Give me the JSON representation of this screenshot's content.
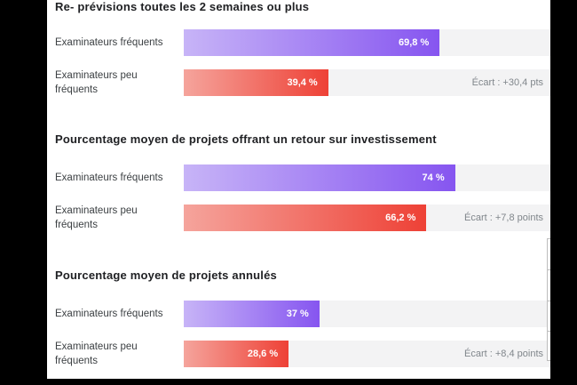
{
  "chart_data": {
    "type": "bar",
    "orientation": "horizontal",
    "unit": "%",
    "axis_max": 100,
    "grid": false,
    "legend": false,
    "categories": [
      "Examinateurs fréquents",
      "Examinateurs peu fréquents"
    ],
    "series_colors": {
      "frequent": {
        "from": "#c7b4f7",
        "to": "#8655f0"
      },
      "infrequent": {
        "from": "#f5a49c",
        "to": "#ee4136"
      }
    },
    "track_color": "#f3f3f4",
    "sections": [
      {
        "title": "Re- prévisions toutes les 2 semaines ou plus",
        "rows": [
          {
            "label": "Examinateurs fréquents",
            "value": 69.8,
            "value_label": "69,8 %",
            "series": "frequent"
          },
          {
            "label": "Examinateurs peu fréquents",
            "value": 39.4,
            "value_label": "39,4 %",
            "series": "infrequent",
            "gap_label": "Écart : +30,4 pts"
          }
        ]
      },
      {
        "title": "Pourcentage moyen de projets offrant un retour sur investissement",
        "rows": [
          {
            "label": "Examinateurs fréquents",
            "value": 74,
            "value_label": "74 %",
            "series": "frequent"
          },
          {
            "label": "Examinateurs peu fréquents",
            "value": 66.2,
            "value_label": "66,2 %",
            "series": "infrequent",
            "gap_label": "Écart : +7,8 points"
          }
        ]
      },
      {
        "title": "Pourcentage moyen de projets annulés",
        "rows": [
          {
            "label": "Examinateurs fréquents",
            "value": 37,
            "value_label": "37 %",
            "series": "frequent"
          },
          {
            "label": "Examinateurs peu fréquents",
            "value": 28.6,
            "value_label": "28,6 %",
            "series": "infrequent",
            "gap_label": "Écart : +8,4 points"
          }
        ]
      }
    ]
  }
}
